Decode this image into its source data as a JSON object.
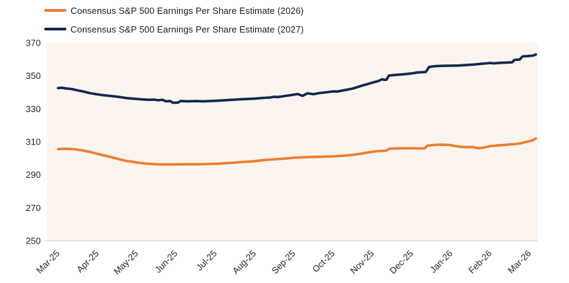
{
  "chart_data": {
    "type": "line",
    "title": "",
    "xlabel": "",
    "ylabel": "",
    "x_tick_labels": [
      "Mar-25",
      "Apr-25",
      "May-25",
      "Jun-25",
      "Jul-25",
      "Aug-25",
      "Sep-25",
      "Oct-25",
      "Nov-25",
      "Dec-25",
      "Jan-26",
      "Feb-26",
      "Mar-26"
    ],
    "y_ticks": [
      250,
      270,
      290,
      310,
      330,
      350,
      370
    ],
    "ylim": [
      250,
      370
    ],
    "x_range_months": [
      0,
      12.16
    ],
    "grid": "off",
    "legend_position": "top-left",
    "plot_bg": "#FCF5EF",
    "axis_line_color": "#D9D9D9",
    "series": [
      {
        "name": "Consensus S&P 500 Earnings Per Share Estimate (2026)",
        "color": "#ED7D31",
        "points": [
          [
            0.0,
            305.6
          ],
          [
            0.15,
            305.8
          ],
          [
            0.3,
            305.7
          ],
          [
            0.45,
            305.4
          ],
          [
            0.6,
            304.9
          ],
          [
            0.75,
            304.2
          ],
          [
            0.9,
            303.4
          ],
          [
            1.0,
            302.8
          ],
          [
            1.15,
            301.9
          ],
          [
            1.3,
            301.0
          ],
          [
            1.45,
            300.1
          ],
          [
            1.6,
            299.2
          ],
          [
            1.75,
            298.4
          ],
          [
            1.9,
            297.9
          ],
          [
            2.0,
            297.5
          ],
          [
            2.15,
            297.0
          ],
          [
            2.3,
            296.7
          ],
          [
            2.5,
            296.4
          ],
          [
            2.7,
            296.3
          ],
          [
            2.9,
            296.3
          ],
          [
            3.1,
            296.4
          ],
          [
            3.3,
            296.4
          ],
          [
            3.5,
            296.4
          ],
          [
            3.7,
            296.5
          ],
          [
            3.9,
            296.6
          ],
          [
            4.1,
            296.8
          ],
          [
            4.3,
            297.1
          ],
          [
            4.5,
            297.4
          ],
          [
            4.7,
            297.8
          ],
          [
            4.9,
            298.1
          ],
          [
            5.0,
            298.3
          ],
          [
            5.15,
            298.7
          ],
          [
            5.3,
            299.1
          ],
          [
            5.45,
            299.3
          ],
          [
            5.6,
            299.6
          ],
          [
            5.8,
            299.9
          ],
          [
            6.0,
            300.4
          ],
          [
            6.2,
            300.6
          ],
          [
            6.4,
            300.8
          ],
          [
            6.6,
            300.9
          ],
          [
            6.8,
            301.0
          ],
          [
            7.0,
            301.2
          ],
          [
            7.2,
            301.5
          ],
          [
            7.4,
            301.9
          ],
          [
            7.6,
            302.4
          ],
          [
            7.8,
            303.2
          ],
          [
            8.0,
            304.0
          ],
          [
            8.15,
            304.4
          ],
          [
            8.3,
            304.6
          ],
          [
            8.36,
            304.7
          ],
          [
            8.42,
            305.8
          ],
          [
            8.6,
            306.0
          ],
          [
            8.8,
            306.1
          ],
          [
            9.0,
            306.1
          ],
          [
            9.2,
            306.0
          ],
          [
            9.33,
            306.1
          ],
          [
            9.4,
            307.7
          ],
          [
            9.6,
            308.2
          ],
          [
            9.8,
            308.3
          ],
          [
            9.95,
            308.1
          ],
          [
            10.1,
            307.5
          ],
          [
            10.25,
            307.0
          ],
          [
            10.4,
            306.8
          ],
          [
            10.55,
            306.8
          ],
          [
            10.7,
            306.1
          ],
          [
            10.85,
            306.6
          ],
          [
            11.0,
            307.4
          ],
          [
            11.2,
            307.8
          ],
          [
            11.4,
            308.2
          ],
          [
            11.6,
            308.6
          ],
          [
            11.75,
            309.0
          ],
          [
            11.88,
            309.8
          ],
          [
            12.0,
            310.4
          ],
          [
            12.08,
            311.0
          ],
          [
            12.16,
            312.0
          ]
        ]
      },
      {
        "name": "Consensus S&P 500 Earnings Per Share Estimate (2027)",
        "color": "#14264E",
        "points": [
          [
            0.0,
            342.6
          ],
          [
            0.1,
            342.8
          ],
          [
            0.2,
            342.4
          ],
          [
            0.35,
            342.0
          ],
          [
            0.5,
            341.2
          ],
          [
            0.65,
            340.5
          ],
          [
            0.8,
            339.6
          ],
          [
            1.0,
            338.8
          ],
          [
            1.15,
            338.3
          ],
          [
            1.3,
            337.9
          ],
          [
            1.5,
            337.4
          ],
          [
            1.7,
            336.7
          ],
          [
            1.85,
            336.3
          ],
          [
            2.0,
            336.0
          ],
          [
            2.15,
            335.7
          ],
          [
            2.3,
            335.5
          ],
          [
            2.45,
            335.6
          ],
          [
            2.55,
            335.2
          ],
          [
            2.65,
            335.5
          ],
          [
            2.75,
            334.6
          ],
          [
            2.85,
            334.8
          ],
          [
            2.92,
            333.7
          ],
          [
            3.05,
            333.8
          ],
          [
            3.12,
            334.8
          ],
          [
            3.3,
            334.6
          ],
          [
            3.5,
            334.7
          ],
          [
            3.7,
            334.6
          ],
          [
            3.9,
            334.8
          ],
          [
            4.1,
            335.0
          ],
          [
            4.3,
            335.3
          ],
          [
            4.5,
            335.6
          ],
          [
            4.7,
            335.9
          ],
          [
            4.9,
            336.1
          ],
          [
            5.0,
            336.2
          ],
          [
            5.2,
            336.6
          ],
          [
            5.4,
            336.9
          ],
          [
            5.5,
            337.3
          ],
          [
            5.6,
            337.2
          ],
          [
            5.8,
            337.9
          ],
          [
            6.0,
            338.6
          ],
          [
            6.1,
            339.0
          ],
          [
            6.22,
            337.9
          ],
          [
            6.35,
            339.4
          ],
          [
            6.5,
            338.9
          ],
          [
            6.65,
            339.6
          ],
          [
            6.8,
            340.0
          ],
          [
            7.0,
            340.6
          ],
          [
            7.1,
            340.5
          ],
          [
            7.3,
            341.4
          ],
          [
            7.5,
            342.3
          ],
          [
            7.7,
            343.8
          ],
          [
            7.9,
            345.2
          ],
          [
            8.0,
            345.9
          ],
          [
            8.15,
            346.9
          ],
          [
            8.25,
            348.0
          ],
          [
            8.3,
            347.6
          ],
          [
            8.36,
            347.7
          ],
          [
            8.42,
            350.2
          ],
          [
            8.6,
            350.6
          ],
          [
            8.8,
            351.0
          ],
          [
            9.0,
            351.5
          ],
          [
            9.15,
            352.1
          ],
          [
            9.3,
            352.3
          ],
          [
            9.36,
            352.4
          ],
          [
            9.44,
            355.4
          ],
          [
            9.6,
            355.9
          ],
          [
            9.8,
            356.1
          ],
          [
            10.0,
            356.2
          ],
          [
            10.2,
            356.3
          ],
          [
            10.4,
            356.6
          ],
          [
            10.6,
            356.9
          ],
          [
            10.8,
            357.4
          ],
          [
            11.0,
            357.8
          ],
          [
            11.1,
            357.6
          ],
          [
            11.25,
            357.9
          ],
          [
            11.4,
            358.1
          ],
          [
            11.55,
            358.2
          ],
          [
            11.62,
            359.7
          ],
          [
            11.75,
            359.9
          ],
          [
            11.82,
            361.8
          ],
          [
            11.95,
            362.0
          ],
          [
            12.05,
            362.2
          ],
          [
            12.1,
            362.4
          ],
          [
            12.16,
            363.0
          ]
        ]
      }
    ]
  }
}
